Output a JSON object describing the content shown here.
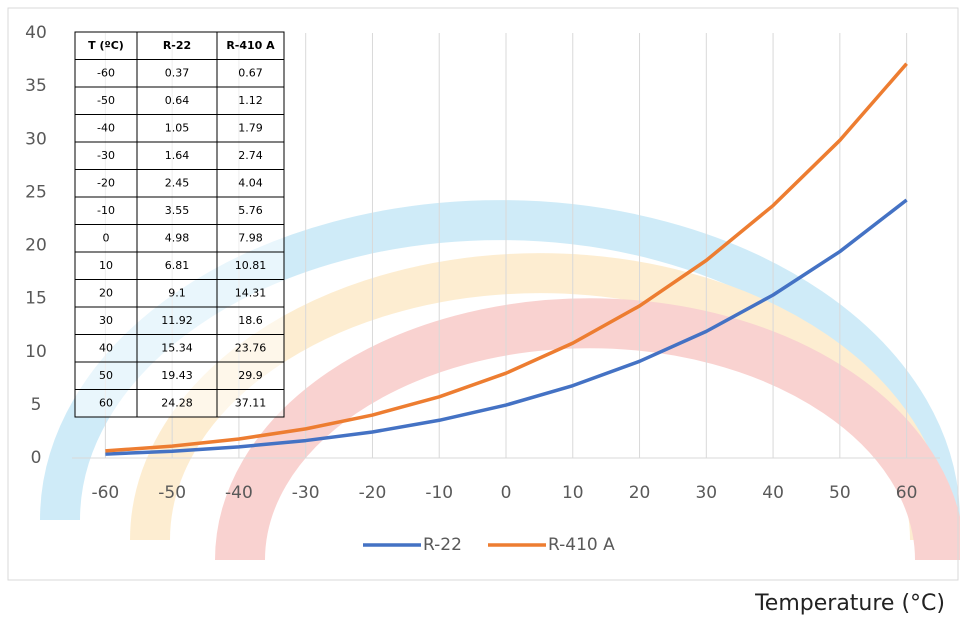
{
  "chart_data": {
    "type": "line",
    "x": [
      -60,
      -50,
      -40,
      -30,
      -20,
      -10,
      0,
      10,
      20,
      30,
      40,
      50,
      60
    ],
    "series": [
      {
        "name": "R-22",
        "color": "#4472c4",
        "values": [
          0.37,
          0.64,
          1.05,
          1.64,
          2.45,
          3.55,
          4.98,
          6.81,
          9.1,
          11.92,
          15.34,
          19.43,
          24.28
        ]
      },
      {
        "name": "R-410 A",
        "color": "#ed7d31",
        "values": [
          0.67,
          1.12,
          1.79,
          2.74,
          4.04,
          5.76,
          7.98,
          10.81,
          14.31,
          18.6,
          23.76,
          29.9,
          37.11
        ]
      }
    ],
    "xlim": [
      -65,
      65
    ],
    "xticks": [
      -60,
      -50,
      -40,
      -30,
      -20,
      -10,
      0,
      10,
      20,
      30,
      40,
      50,
      60
    ],
    "ylim": [
      0,
      40
    ],
    "yticks": [
      0,
      5,
      10,
      15,
      20,
      25,
      30,
      35,
      40
    ],
    "grid": "x",
    "legend": "bottom",
    "table_header": "T (ºC)",
    "xlabel": "Temperature (°C)"
  }
}
